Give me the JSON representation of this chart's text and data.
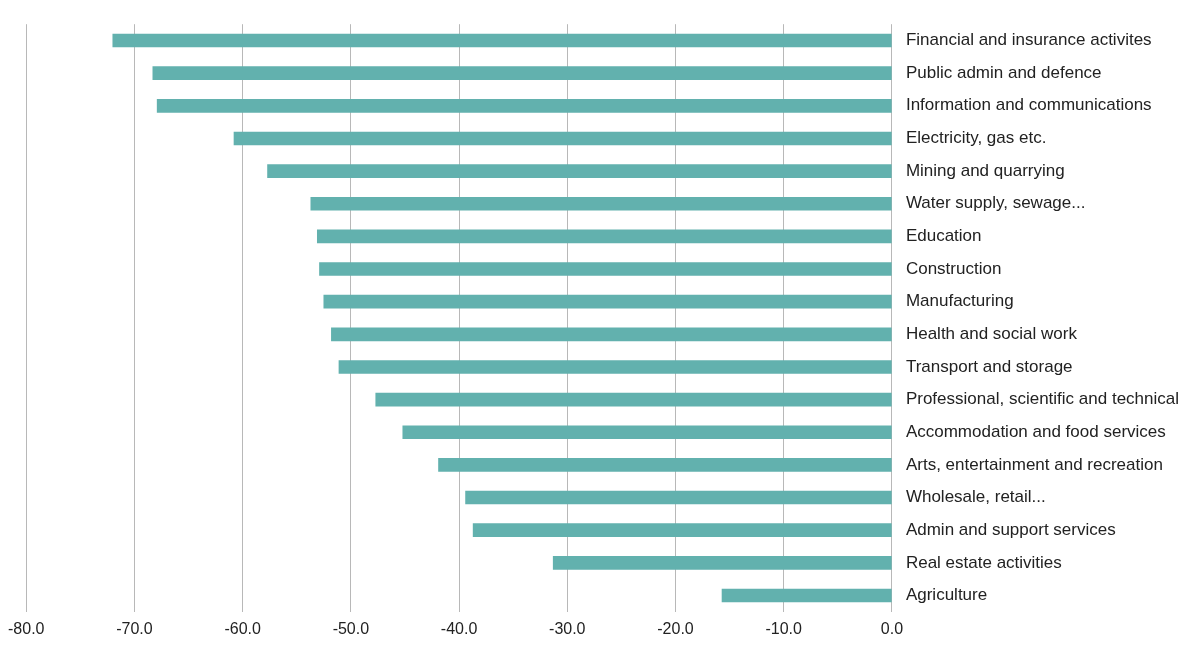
{
  "chart_data": {
    "type": "bar",
    "orientation": "horizontal",
    "categories": [
      "Financial and insurance activites",
      "Public admin and defence",
      "Information and communications",
      "Electricity, gas etc.",
      "Mining and quarrying",
      "Water supply, sewage...",
      "Education",
      "Construction",
      "Manufacturing",
      "Health and social work",
      "Transport and storage",
      "Professional, scientific and technical",
      "Accommodation and food services",
      "Arts, entertainment and recreation",
      "Wholesale, retail...",
      "Admin and support services",
      "Real estate activities",
      "Agriculture"
    ],
    "values": [
      -72.0,
      -68.3,
      -67.9,
      -60.8,
      -57.7,
      -53.7,
      -53.1,
      -52.9,
      -52.5,
      -51.8,
      -51.1,
      -47.7,
      -45.2,
      -41.9,
      -39.4,
      -38.7,
      -31.3,
      -15.7
    ],
    "color": "#62b1ae",
    "xlim": [
      -80,
      0
    ],
    "xticks": [
      {
        "value": -80,
        "label": "-80.0"
      },
      {
        "value": -70,
        "label": "-70.0"
      },
      {
        "value": -60,
        "label": "-60.0"
      },
      {
        "value": -50,
        "label": "-50.0"
      },
      {
        "value": -40,
        "label": "-40.0"
      },
      {
        "value": -30,
        "label": "-30.0"
      },
      {
        "value": -20,
        "label": "-20.0"
      },
      {
        "value": -10,
        "label": "-10.0"
      },
      {
        "value": 0,
        "label": "0.0"
      }
    ],
    "grid": "x",
    "legend": false
  }
}
